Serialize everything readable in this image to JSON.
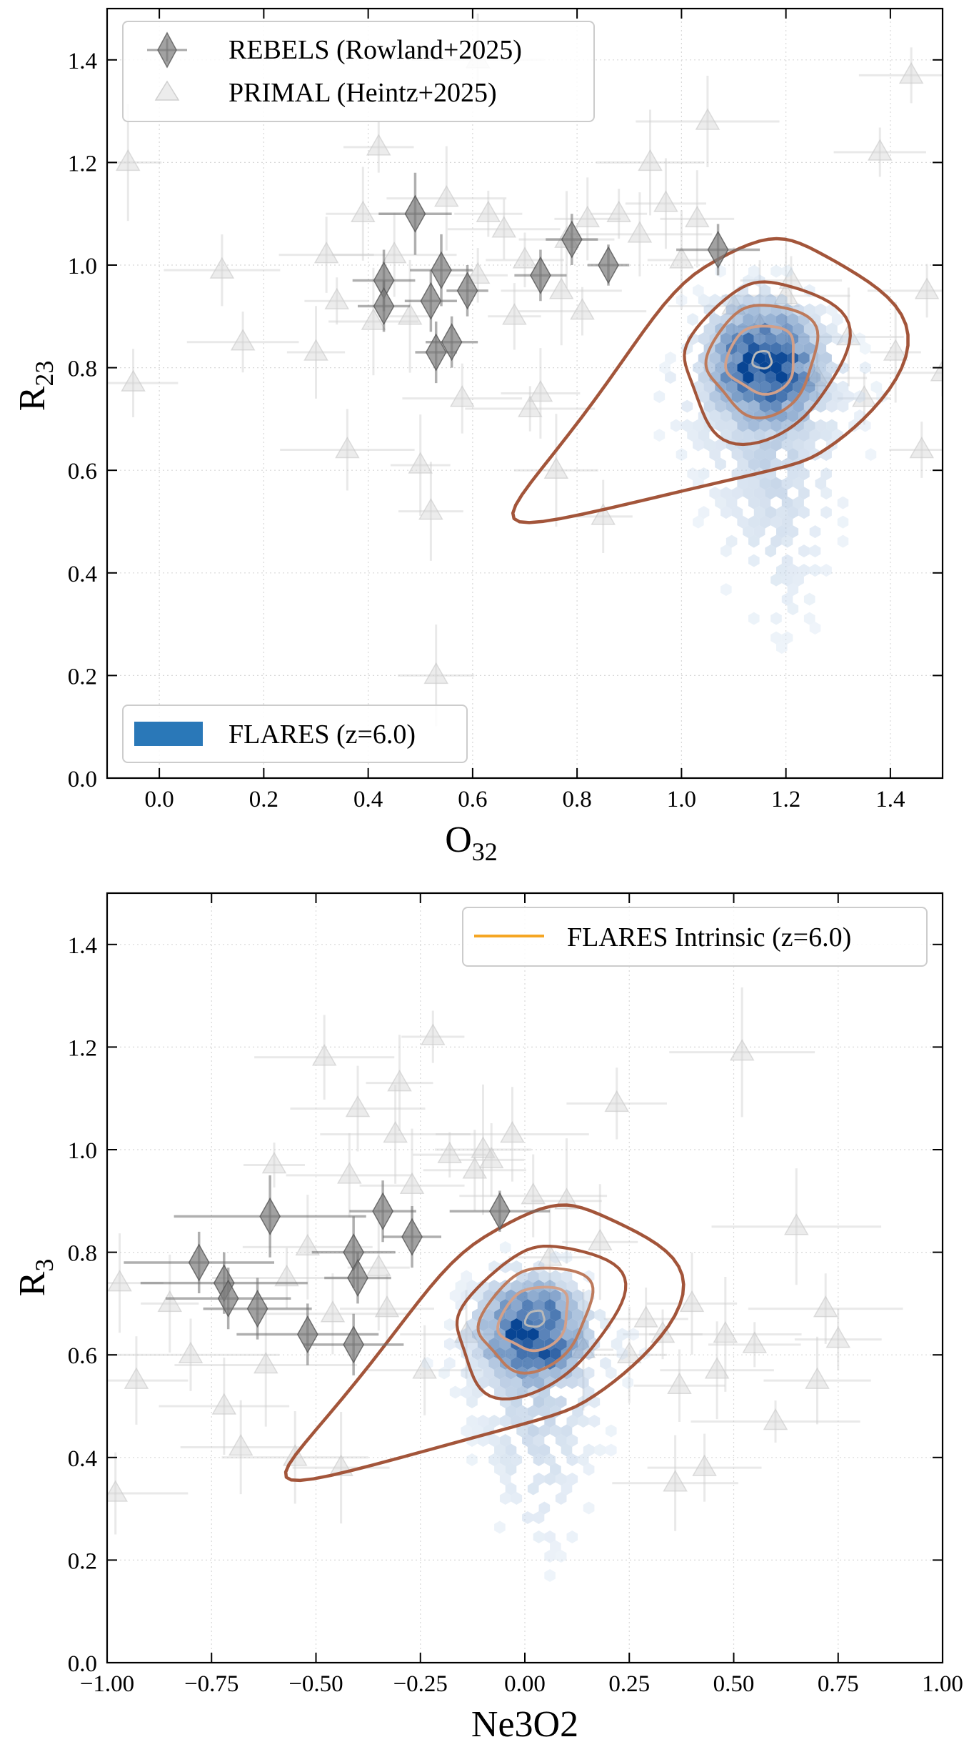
{
  "chart_data": [
    {
      "type": "scatter",
      "title": "",
      "xlabel": "O",
      "xlabel_sub": "32",
      "ylabel": "R",
      "ylabel_sub": "23",
      "xlim": [
        -0.1,
        1.5
      ],
      "ylim": [
        0.0,
        1.5
      ],
      "xticks": [
        0.0,
        0.2,
        0.4,
        0.6,
        0.8,
        1.0,
        1.2,
        1.4
      ],
      "xtick_labels": [
        "0.0",
        "0.2",
        "0.4",
        "0.6",
        "0.8",
        "1.0",
        "1.2",
        "1.4"
      ],
      "yticks": [
        0.0,
        0.2,
        0.4,
        0.6,
        0.8,
        1.0,
        1.2,
        1.4
      ],
      "ytick_labels": [
        "0.0",
        "0.2",
        "0.4",
        "0.6",
        "0.8",
        "1.0",
        "1.2",
        "1.4"
      ],
      "grid": true,
      "legends": [
        {
          "placement": "upper-left",
          "entries": [
            {
              "label": "REBELS (Rowland+2025)",
              "marker": "diamond",
              "color": "#6e6e6e"
            },
            {
              "label": "PRIMAL (Heintz+2025)",
              "marker": "triangle",
              "color": "#d9d9d9"
            }
          ]
        },
        {
          "placement": "lower-left",
          "entries": [
            {
              "label": "FLARES (z=6.0)",
              "marker": "patch",
              "color": "#2a78b8"
            }
          ]
        }
      ],
      "series": [
        {
          "name": "REBELS (Rowland+2025)",
          "marker": "diamond",
          "color": "#6e6e6e",
          "points": [
            {
              "x": 0.43,
              "y": 0.97,
              "xerr": 0.06,
              "yerr": 0.06
            },
            {
              "x": 0.43,
              "y": 0.92,
              "xerr": 0.05,
              "yerr": 0.05
            },
            {
              "x": 0.49,
              "y": 1.1,
              "xerr": 0.07,
              "yerr": 0.08
            },
            {
              "x": 0.52,
              "y": 0.93,
              "xerr": 0.05,
              "yerr": 0.06
            },
            {
              "x": 0.54,
              "y": 0.99,
              "xerr": 0.06,
              "yerr": 0.07
            },
            {
              "x": 0.53,
              "y": 0.83,
              "xerr": 0.04,
              "yerr": 0.06
            },
            {
              "x": 0.56,
              "y": 0.85,
              "xerr": 0.05,
              "yerr": 0.05
            },
            {
              "x": 0.59,
              "y": 0.95,
              "xerr": 0.04,
              "yerr": 0.05
            },
            {
              "x": 0.73,
              "y": 0.98,
              "xerr": 0.05,
              "yerr": 0.05
            },
            {
              "x": 0.79,
              "y": 1.05,
              "xerr": 0.05,
              "yerr": 0.05
            },
            {
              "x": 0.86,
              "y": 1.0,
              "xerr": 0.04,
              "yerr": 0.04
            },
            {
              "x": 1.07,
              "y": 1.03,
              "xerr": 0.08,
              "yerr": 0.05
            }
          ]
        },
        {
          "name": "PRIMAL (Heintz+2025)",
          "marker": "triangle",
          "color": "#cccccc",
          "points": [
            {
              "x": -0.06,
              "y": 1.2
            },
            {
              "x": -0.05,
              "y": 0.77
            },
            {
              "x": 0.12,
              "y": 0.99
            },
            {
              "x": 0.16,
              "y": 0.85
            },
            {
              "x": 0.3,
              "y": 0.83
            },
            {
              "x": 0.32,
              "y": 1.02
            },
            {
              "x": 0.34,
              "y": 0.93
            },
            {
              "x": 0.36,
              "y": 0.64
            },
            {
              "x": 0.39,
              "y": 1.1
            },
            {
              "x": 0.41,
              "y": 0.89
            },
            {
              "x": 0.42,
              "y": 1.23
            },
            {
              "x": 0.45,
              "y": 1.02
            },
            {
              "x": 0.48,
              "y": 0.9
            },
            {
              "x": 0.5,
              "y": 0.61
            },
            {
              "x": 0.52,
              "y": 0.52
            },
            {
              "x": 0.53,
              "y": 0.2
            },
            {
              "x": 0.55,
              "y": 1.13
            },
            {
              "x": 0.58,
              "y": 0.74
            },
            {
              "x": 0.61,
              "y": 0.98
            },
            {
              "x": 0.63,
              "y": 1.1
            },
            {
              "x": 0.66,
              "y": 1.07
            },
            {
              "x": 0.68,
              "y": 0.9
            },
            {
              "x": 0.7,
              "y": 1.01
            },
            {
              "x": 0.71,
              "y": 0.72
            },
            {
              "x": 0.73,
              "y": 0.75
            },
            {
              "x": 0.76,
              "y": 0.6
            },
            {
              "x": 0.77,
              "y": 0.95
            },
            {
              "x": 0.78,
              "y": 1.05
            },
            {
              "x": 0.81,
              "y": 0.91
            },
            {
              "x": 0.82,
              "y": 1.09
            },
            {
              "x": 0.85,
              "y": 0.51
            },
            {
              "x": 0.88,
              "y": 1.1
            },
            {
              "x": 0.92,
              "y": 1.06
            },
            {
              "x": 0.94,
              "y": 1.2
            },
            {
              "x": 0.97,
              "y": 1.12
            },
            {
              "x": 1.0,
              "y": 1.01
            },
            {
              "x": 1.03,
              "y": 1.09
            },
            {
              "x": 1.05,
              "y": 1.28
            },
            {
              "x": 1.1,
              "y": 0.92
            },
            {
              "x": 1.15,
              "y": 0.88
            },
            {
              "x": 1.2,
              "y": 0.94
            },
            {
              "x": 1.26,
              "y": 0.78
            },
            {
              "x": 1.32,
              "y": 0.86
            },
            {
              "x": 1.35,
              "y": 0.74
            },
            {
              "x": 1.38,
              "y": 1.22
            },
            {
              "x": 1.41,
              "y": 0.83
            },
            {
              "x": 1.44,
              "y": 1.37
            },
            {
              "x": 1.46,
              "y": 0.64
            },
            {
              "x": 1.47,
              "y": 0.95
            },
            {
              "x": 1.5,
              "y": 0.79
            },
            {
              "x": 0.61,
              "y": 1.4
            },
            {
              "x": 1.21,
              "y": 0.97
            }
          ]
        }
      ],
      "density": {
        "name": "FLARES (z=6.0)",
        "color": "#2a78b8",
        "mean": [
          1.16,
          0.8
        ],
        "sd": [
          0.075,
          0.085
        ],
        "tail_to": [
          1.2,
          0.2
        ]
      },
      "contours": {
        "color_outer": "#a3553a",
        "color_inner": "#d2a08a",
        "center": [
          1.155,
          0.815
        ],
        "levels": 5
      }
    },
    {
      "type": "scatter",
      "title": "",
      "xlabel": "Ne3O2",
      "xlabel_sub": "",
      "ylabel": "R",
      "ylabel_sub": "3",
      "xlim": [
        -1.0,
        1.0
      ],
      "ylim": [
        0.0,
        1.5
      ],
      "xticks": [
        -1.0,
        -0.75,
        -0.5,
        -0.25,
        0.0,
        0.25,
        0.5,
        0.75,
        1.0
      ],
      "xtick_labels": [
        "−1.00",
        "−0.75",
        "−0.50",
        "−0.25",
        "0.00",
        "0.25",
        "0.50",
        "0.75",
        "1.00"
      ],
      "yticks": [
        0.0,
        0.2,
        0.4,
        0.6,
        0.8,
        1.0,
        1.2,
        1.4
      ],
      "ytick_labels": [
        "0.0",
        "0.2",
        "0.4",
        "0.6",
        "0.8",
        "1.0",
        "1.2",
        "1.4"
      ],
      "grid": true,
      "legends": [
        {
          "placement": "upper-right",
          "entries": [
            {
              "label": "FLARES Intrinsic (z=6.0)",
              "marker": "line",
              "color": "#f5a623"
            }
          ]
        }
      ],
      "series": [
        {
          "name": "REBELS (Rowland+2025)",
          "marker": "diamond",
          "color": "#6e6e6e",
          "points": [
            {
              "x": -0.78,
              "y": 0.78,
              "xerr": 0.18,
              "yerr": 0.06
            },
            {
              "x": -0.72,
              "y": 0.74,
              "xerr": 0.2,
              "yerr": 0.06
            },
            {
              "x": -0.71,
              "y": 0.71,
              "xerr": 0.15,
              "yerr": 0.06
            },
            {
              "x": -0.64,
              "y": 0.69,
              "xerr": 0.13,
              "yerr": 0.06
            },
            {
              "x": -0.61,
              "y": 0.87,
              "xerr": 0.23,
              "yerr": 0.08
            },
            {
              "x": -0.52,
              "y": 0.64,
              "xerr": 0.17,
              "yerr": 0.06
            },
            {
              "x": -0.41,
              "y": 0.8,
              "xerr": 0.1,
              "yerr": 0.07
            },
            {
              "x": -0.4,
              "y": 0.75,
              "xerr": 0.08,
              "yerr": 0.05
            },
            {
              "x": -0.41,
              "y": 0.62,
              "xerr": 0.12,
              "yerr": 0.06
            },
            {
              "x": -0.34,
              "y": 0.88,
              "xerr": 0.08,
              "yerr": 0.06
            },
            {
              "x": -0.27,
              "y": 0.83,
              "xerr": 0.07,
              "yerr": 0.06
            },
            {
              "x": -0.06,
              "y": 0.88,
              "xerr": 0.12,
              "yerr": 0.04
            }
          ]
        },
        {
          "name": "PRIMAL (Heintz+2025)",
          "marker": "triangle",
          "color": "#cccccc",
          "points": [
            {
              "x": -0.97,
              "y": 0.74
            },
            {
              "x": -0.98,
              "y": 0.33
            },
            {
              "x": -0.93,
              "y": 0.55
            },
            {
              "x": -0.85,
              "y": 0.7
            },
            {
              "x": -0.8,
              "y": 0.6
            },
            {
              "x": -0.72,
              "y": 0.5
            },
            {
              "x": -0.68,
              "y": 0.42
            },
            {
              "x": -0.62,
              "y": 0.58
            },
            {
              "x": -0.6,
              "y": 0.97
            },
            {
              "x": -0.57,
              "y": 0.75
            },
            {
              "x": -0.55,
              "y": 0.4
            },
            {
              "x": -0.52,
              "y": 0.81
            },
            {
              "x": -0.48,
              "y": 1.18
            },
            {
              "x": -0.46,
              "y": 0.68
            },
            {
              "x": -0.44,
              "y": 0.38
            },
            {
              "x": -0.42,
              "y": 0.95
            },
            {
              "x": -0.4,
              "y": 1.08
            },
            {
              "x": -0.35,
              "y": 0.77
            },
            {
              "x": -0.31,
              "y": 1.03
            },
            {
              "x": -0.3,
              "y": 1.13
            },
            {
              "x": -0.27,
              "y": 0.93
            },
            {
              "x": -0.24,
              "y": 0.57
            },
            {
              "x": -0.22,
              "y": 1.22
            },
            {
              "x": -0.18,
              "y": 0.99
            },
            {
              "x": -0.14,
              "y": 0.64
            },
            {
              "x": -0.12,
              "y": 0.96
            },
            {
              "x": -0.1,
              "y": 1.0
            },
            {
              "x": -0.08,
              "y": 0.98
            },
            {
              "x": -0.03,
              "y": 1.03
            },
            {
              "x": 0.02,
              "y": 0.91
            },
            {
              "x": 0.06,
              "y": 0.79
            },
            {
              "x": 0.1,
              "y": 0.9
            },
            {
              "x": 0.14,
              "y": 0.61
            },
            {
              "x": 0.18,
              "y": 0.82
            },
            {
              "x": 0.22,
              "y": 1.09
            },
            {
              "x": 0.25,
              "y": 0.6
            },
            {
              "x": 0.29,
              "y": 0.67
            },
            {
              "x": 0.33,
              "y": 0.64
            },
            {
              "x": 0.37,
              "y": 0.54
            },
            {
              "x": 0.4,
              "y": 0.7
            },
            {
              "x": 0.43,
              "y": 0.38
            },
            {
              "x": 0.46,
              "y": 0.57
            },
            {
              "x": 0.48,
              "y": 0.64
            },
            {
              "x": 0.52,
              "y": 1.19
            },
            {
              "x": 0.55,
              "y": 0.62
            },
            {
              "x": 0.6,
              "y": 0.47
            },
            {
              "x": 0.65,
              "y": 0.85
            },
            {
              "x": 0.7,
              "y": 0.55
            },
            {
              "x": 0.72,
              "y": 0.69
            },
            {
              "x": 0.75,
              "y": 0.63
            },
            {
              "x": 0.36,
              "y": 0.35
            },
            {
              "x": -0.33,
              "y": 0.69
            }
          ]
        }
      ],
      "density": {
        "name": "FLARES (z=6.0)",
        "color": "#2a78b8",
        "mean": [
          0.02,
          0.64
        ],
        "sd": [
          0.085,
          0.075
        ],
        "tail_to": [
          0.05,
          0.12
        ]
      },
      "contours": {
        "color_outer": "#a3553a",
        "color_inner": "#d2a08a",
        "center": [
          0.025,
          0.67
        ],
        "levels": 5
      }
    }
  ]
}
